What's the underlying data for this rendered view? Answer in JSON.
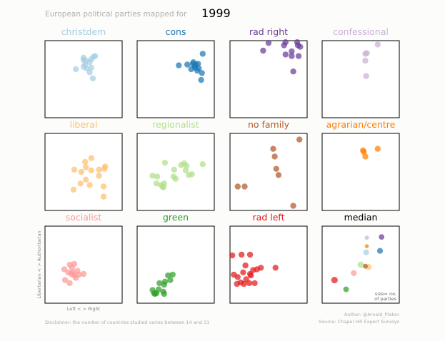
{
  "header": {
    "subtitle": "European political parties mapped for",
    "year": "1999"
  },
  "axes_labels": {
    "ylabel": "Libertarian  <  >  Authoritarian",
    "xlabel": "Left  <  >  Right"
  },
  "legend_note": {
    "line1": "size= no.",
    "line2": "of parties"
  },
  "footer": {
    "disclaimer": "Disclaimer: the number of countries studied varies between 14 and 31",
    "author": "Author: @Arnold_Platon",
    "source": "Source: Chapel Hill Expert Surveys"
  },
  "colors": {
    "christdem": "#a6cee3",
    "cons": "#1f78b4",
    "rad right": "#6a3d9a",
    "confessional": "#cab2d6",
    "liberal": "#fdbf6f",
    "regionalist": "#b2df8a",
    "no family": "#b15928",
    "agrarian/centre": "#ff7f00",
    "socialist": "#fb9a99",
    "green": "#33a02c",
    "rad left": "#e31a1c",
    "median": "#000000"
  },
  "chart_data": {
    "type": "scatter",
    "title": "European political parties mapped for 1999",
    "xlabel": "Left  <  >  Right",
    "ylabel": "Libertarian  <  >  Authoritarian",
    "xlim": [
      0,
      10
    ],
    "ylim": [
      0,
      10
    ],
    "panels": [
      {
        "name": "christdem",
        "points": [
          [
            5.0,
            7.5
          ],
          [
            6.5,
            8.0
          ],
          [
            5.0,
            7.8
          ],
          [
            6.0,
            7.6
          ],
          [
            5.8,
            7.2
          ],
          [
            5.2,
            6.9
          ],
          [
            6.3,
            7.9
          ],
          [
            4.0,
            6.3
          ],
          [
            5.4,
            6.4
          ],
          [
            5.0,
            6.6
          ],
          [
            6.0,
            6.5
          ],
          [
            6.2,
            5.1
          ],
          [
            5.8,
            5.9
          ],
          [
            5.3,
            7.4
          ]
        ]
      },
      {
        "name": "cons",
        "points": [
          [
            6.5,
            6.9
          ],
          [
            8.0,
            6.4
          ],
          [
            8.5,
            8.3
          ],
          [
            7.5,
            6.5
          ],
          [
            7.2,
            7.0
          ],
          [
            7.9,
            7.0
          ],
          [
            8.4,
            5.8
          ],
          [
            7.0,
            6.3
          ],
          [
            7.5,
            6.7
          ],
          [
            7.8,
            6.1
          ],
          [
            7.3,
            7.2
          ],
          [
            5.4,
            6.8
          ],
          [
            8.3,
            4.9
          ],
          [
            7.6,
            6.9
          ]
        ]
      },
      {
        "name": "rad right",
        "points": [
          [
            7.0,
            9.4
          ],
          [
            7.2,
            8.2
          ],
          [
            8.0,
            8.6
          ],
          [
            8.0,
            8.0
          ],
          [
            8.8,
            9.4
          ],
          [
            9.1,
            9.2
          ],
          [
            8.9,
            8.0
          ],
          [
            8.2,
            6.0
          ],
          [
            5.0,
            9.7
          ],
          [
            4.3,
            8.7
          ],
          [
            7.2,
            9.8
          ],
          [
            8.7,
            9.8
          ]
        ]
      },
      {
        "name": "confessional",
        "points": [
          [
            5.6,
            8.3
          ],
          [
            5.8,
            8.4
          ],
          [
            5.6,
            7.4
          ],
          [
            7.2,
            9.5
          ],
          [
            5.7,
            5.4
          ]
        ]
      },
      {
        "name": "liberal",
        "points": [
          [
            6.0,
            6.8
          ],
          [
            7.0,
            4.5
          ],
          [
            7.0,
            5.3
          ],
          [
            6.0,
            5.2
          ],
          [
            5.8,
            3.3
          ],
          [
            5.3,
            5.6
          ],
          [
            5.3,
            4.0
          ],
          [
            3.8,
            5.3
          ],
          [
            3.7,
            2.7
          ],
          [
            4.7,
            5.0
          ],
          [
            4.6,
            3.5
          ],
          [
            7.6,
            3.1
          ],
          [
            7.8,
            5.7
          ],
          [
            5.2,
            6.3
          ],
          [
            7.7,
            5.4
          ],
          [
            7.6,
            1.8
          ]
        ]
      },
      {
        "name": "regionalist",
        "points": [
          [
            3.6,
            6.2
          ],
          [
            4.8,
            5.3
          ],
          [
            5.7,
            5.9
          ],
          [
            6.4,
            5.8
          ],
          [
            6.3,
            5.2
          ],
          [
            6.1,
            6.1
          ],
          [
            8.5,
            6.0
          ],
          [
            2.0,
            4.5
          ],
          [
            3.1,
            3.3
          ],
          [
            3.4,
            3.0
          ],
          [
            2.6,
            4.4
          ],
          [
            7.1,
            4.7
          ],
          [
            3.5,
            3.5
          ],
          [
            4.7,
            4.4
          ],
          [
            5.0,
            4.1
          ],
          [
            3.3,
            3.1
          ],
          [
            2.5,
            3.5
          ],
          [
            6.7,
            4.6
          ]
        ]
      },
      {
        "name": "no family",
        "points": [
          [
            9.0,
            9.2
          ],
          [
            5.6,
            8.0
          ],
          [
            5.8,
            7.0
          ],
          [
            6.0,
            5.4
          ],
          [
            6.3,
            4.6
          ],
          [
            1.0,
            3.1
          ],
          [
            1.9,
            3.1
          ],
          [
            8.2,
            0.6
          ]
        ]
      },
      {
        "name": "agrarian/centre",
        "points": [
          [
            5.3,
            7.8
          ],
          [
            5.4,
            7.6
          ],
          [
            7.2,
            8.0
          ],
          [
            5.6,
            7.0
          ]
        ]
      },
      {
        "name": "socialist",
        "points": [
          [
            3.2,
            5.0
          ],
          [
            3.8,
            5.1
          ],
          [
            3.5,
            4.6
          ],
          [
            2.5,
            4.4
          ],
          [
            3.4,
            3.8
          ],
          [
            3.0,
            4.0
          ],
          [
            4.2,
            4.2
          ],
          [
            5.0,
            3.8
          ],
          [
            3.8,
            3.6
          ],
          [
            4.0,
            3.3
          ],
          [
            2.6,
            3.0
          ],
          [
            3.2,
            2.6
          ],
          [
            3.6,
            4.0
          ],
          [
            4.4,
            3.7
          ]
        ]
      },
      {
        "name": "green",
        "points": [
          [
            4.0,
            3.6
          ],
          [
            4.6,
            3.7
          ],
          [
            2.8,
            1.8
          ],
          [
            3.5,
            2.4
          ],
          [
            3.6,
            2.8
          ],
          [
            3.4,
            1.5
          ],
          [
            2.5,
            1.3
          ],
          [
            2.0,
            1.7
          ],
          [
            2.2,
            1.3
          ],
          [
            3.5,
            1.2
          ],
          [
            4.3,
            3.0
          ],
          [
            2.9,
            2.6
          ],
          [
            2.3,
            1.2
          ]
        ]
      },
      {
        "name": "rad left",
        "points": [
          [
            1.5,
            6.3
          ],
          [
            2.6,
            6.3
          ],
          [
            0.3,
            6.2
          ],
          [
            4.0,
            4.6
          ],
          [
            5.9,
            4.6
          ],
          [
            2.0,
            4.9
          ],
          [
            1.7,
            4.0
          ],
          [
            2.6,
            3.8
          ],
          [
            2.7,
            3.6
          ],
          [
            1.0,
            3.4
          ],
          [
            2.1,
            3.1
          ],
          [
            2.5,
            2.6
          ],
          [
            1.8,
            2.5
          ],
          [
            1.4,
            2.7
          ],
          [
            0.9,
            2.5
          ],
          [
            3.2,
            2.6
          ],
          [
            0.5,
            3.7
          ],
          [
            3.0,
            4.3
          ],
          [
            3.5,
            4.4
          ]
        ]
      },
      {
        "name": "median",
        "points": [
          {
            "x": 7.7,
            "y": 8.6,
            "family": "rad right",
            "n": 12
          },
          {
            "x": 5.8,
            "y": 8.5,
            "family": "confessional",
            "n": 5
          },
          {
            "x": 5.8,
            "y": 7.4,
            "family": "agrarian/centre",
            "n": 4
          },
          {
            "x": 7.5,
            "y": 6.8,
            "family": "cons",
            "n": 14
          },
          {
            "x": 5.7,
            "y": 6.6,
            "family": "christdem",
            "n": 14
          },
          {
            "x": 5.0,
            "y": 5.0,
            "family": "regionalist",
            "n": 18
          },
          {
            "x": 6.0,
            "y": 4.7,
            "family": "liberal",
            "n": 16
          },
          {
            "x": 5.6,
            "y": 4.8,
            "family": "no family",
            "n": 8
          },
          {
            "x": 4.1,
            "y": 3.9,
            "family": "socialist",
            "n": 14
          },
          {
            "x": 1.6,
            "y": 3.0,
            "family": "rad left",
            "n": 19
          },
          {
            "x": 3.1,
            "y": 1.8,
            "family": "green",
            "n": 13
          }
        ]
      }
    ]
  }
}
